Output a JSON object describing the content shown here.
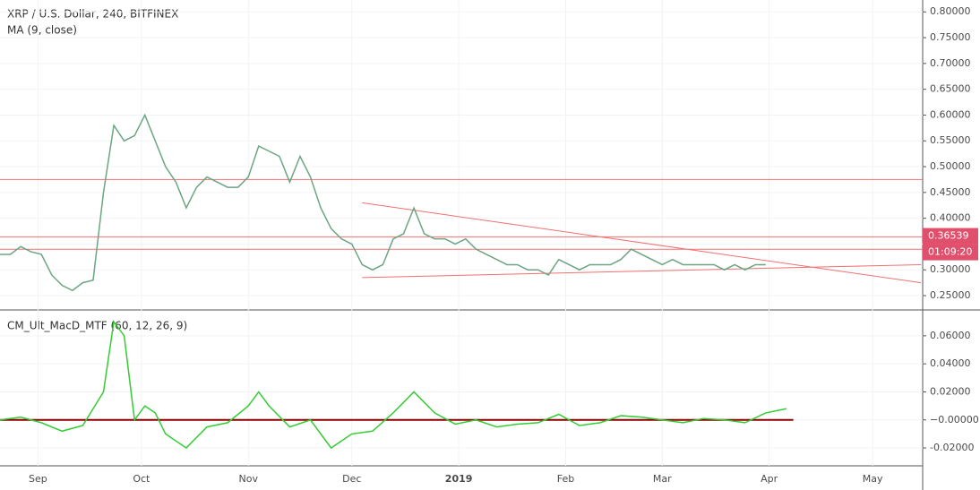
{
  "chart_data": [
    {
      "type": "line",
      "title": "XRP / U.S. Dollar, 240, BITFINEX",
      "indicator_label": "MA (9, close)",
      "x": [
        0,
        3,
        6,
        9,
        12,
        15,
        18,
        21,
        24,
        27,
        30,
        33,
        36,
        39,
        42,
        45,
        48,
        51,
        54,
        57,
        60,
        63,
        66,
        69,
        72,
        75,
        78,
        81,
        84,
        87,
        90,
        93,
        96,
        99,
        102,
        105,
        108,
        111,
        114,
        117,
        120,
        123,
        126,
        129,
        132,
        135,
        138,
        141,
        144,
        147,
        150,
        153,
        156,
        159,
        162,
        165,
        168,
        171,
        174,
        177,
        180,
        183,
        186,
        189,
        192,
        195,
        198,
        201,
        204,
        207,
        210,
        213,
        216,
        219,
        222
      ],
      "series": [
        {
          "color": "#6ba583",
          "values": [
            0.33,
            0.33,
            0.345,
            0.335,
            0.33,
            0.29,
            0.27,
            0.26,
            0.275,
            0.28,
            0.45,
            0.58,
            0.55,
            0.56,
            0.6,
            0.55,
            0.5,
            0.47,
            0.42,
            0.46,
            0.48,
            0.47,
            0.46,
            0.46,
            0.48,
            0.54,
            0.53,
            0.52,
            0.47,
            0.52,
            0.48,
            0.42,
            0.38,
            0.36,
            0.35,
            0.31,
            0.3,
            0.31,
            0.36,
            0.37,
            0.42,
            0.37,
            0.36,
            0.36,
            0.35,
            0.36,
            0.34,
            0.33,
            0.32,
            0.31,
            0.31,
            0.3,
            0.3,
            0.29,
            0.32,
            0.31,
            0.3,
            0.31,
            0.31,
            0.31,
            0.32,
            0.34,
            0.33,
            0.32,
            0.31,
            0.32,
            0.31,
            0.31,
            0.31,
            0.31,
            0.3,
            0.31,
            0.3,
            0.31,
            0.31
          ]
        }
      ],
      "hlines": [
        0.475,
        0.364,
        0.34
      ],
      "hline_color": "#f07070",
      "trendlines": [
        {
          "x": [
            105,
            267
          ],
          "values": [
            0.43,
            0.275
          ]
        },
        {
          "x": [
            105,
            267
          ],
          "values": [
            0.285,
            0.31
          ]
        }
      ],
      "last_price": 0.36539,
      "countdown": "01:09:20",
      "xlim": [
        0,
        267.5
      ],
      "xticks": [
        {
          "value": 11,
          "label": "Sep"
        },
        {
          "value": 41,
          "label": "Oct"
        },
        {
          "value": 72,
          "label": "Nov"
        },
        {
          "value": 102,
          "label": "Dec"
        },
        {
          "value": 133,
          "label": "2019"
        },
        {
          "value": 164,
          "label": "Feb"
        },
        {
          "value": 192,
          "label": "Mar"
        },
        {
          "value": 223,
          "label": "Apr"
        },
        {
          "value": 253,
          "label": "May"
        }
      ],
      "ylim": [
        0.224,
        0.823
      ],
      "yticks": [
        {
          "value": 0.25,
          "label": "0.25000"
        },
        {
          "value": 0.3,
          "label": "0.30000"
        },
        {
          "value": 0.35,
          "label": "0.35000"
        },
        {
          "value": 0.4,
          "label": "0.40000"
        },
        {
          "value": 0.45,
          "label": "0.45000"
        },
        {
          "value": 0.5,
          "label": "0.50000"
        },
        {
          "value": 0.55,
          "label": "0.55000"
        },
        {
          "value": 0.6,
          "label": "0.60000"
        },
        {
          "value": 0.65,
          "label": "0.65000"
        },
        {
          "value": 0.7,
          "label": "0.70000"
        },
        {
          "value": 0.75,
          "label": "0.75000"
        },
        {
          "value": 0.8,
          "label": "0.80000"
        }
      ]
    },
    {
      "type": "line",
      "title": "CM_Ult_MacD_MTF (60, 12, 26, 9)",
      "x": [
        0,
        6,
        12,
        18,
        24,
        30,
        33,
        36,
        39,
        42,
        45,
        48,
        54,
        60,
        66,
        72,
        75,
        78,
        84,
        90,
        96,
        102,
        108,
        114,
        120,
        126,
        132,
        138,
        144,
        150,
        156,
        162,
        168,
        174,
        180,
        186,
        192,
        198,
        204,
        210,
        216,
        222,
        228
      ],
      "series": [
        {
          "color": "#33cc33",
          "values": [
            0.0,
            0.002,
            -0.002,
            -0.008,
            -0.004,
            0.02,
            0.07,
            0.06,
            0.0,
            0.01,
            0.005,
            -0.01,
            -0.02,
            -0.005,
            -0.002,
            0.01,
            0.02,
            0.01,
            -0.005,
            0.0,
            -0.02,
            -0.01,
            -0.008,
            0.005,
            0.02,
            0.005,
            -0.003,
            0.0,
            -0.005,
            -0.003,
            -0.002,
            0.004,
            -0.004,
            -0.002,
            0.003,
            0.002,
            0.0,
            -0.002,
            0.001,
            0.0,
            -0.002,
            0.005,
            0.008
          ]
        }
      ],
      "ylim": [
        -0.0321,
        0.0778
      ],
      "yticks": [
        {
          "value": -0.02,
          "label": "-0.02000"
        },
        {
          "value": 0,
          "label": "−0.00000"
        },
        {
          "value": 0.02,
          "label": "0.02000"
        },
        {
          "value": 0.04,
          "label": "0.04000"
        },
        {
          "value": 0.06,
          "label": "0.06000"
        }
      ]
    }
  ]
}
